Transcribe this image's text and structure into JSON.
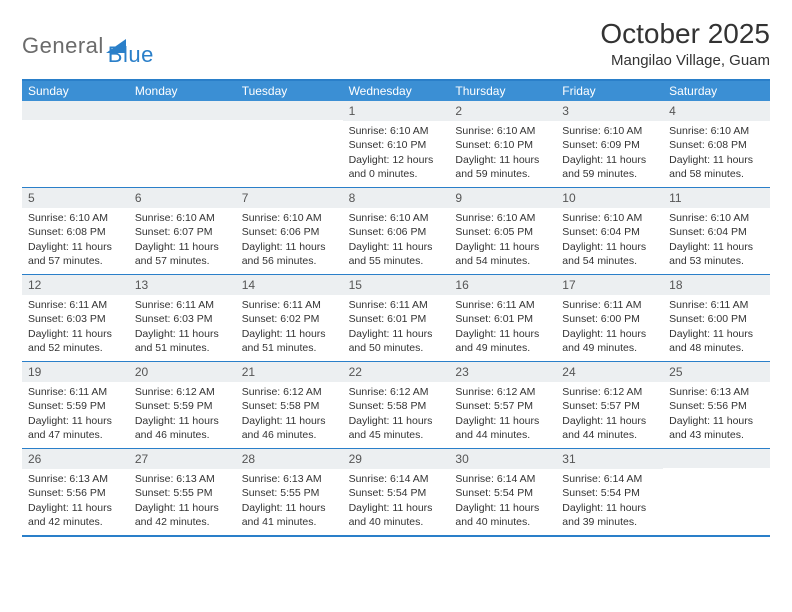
{
  "logo": {
    "general": "General",
    "blue": "Blue"
  },
  "header": {
    "title": "October 2025",
    "location": "Mangilao Village, Guam"
  },
  "colors": {
    "brand": "#2a7fc9",
    "header_bg": "#3b8fd4",
    "daynum_bg": "#eceff1"
  },
  "dayNames": [
    "Sunday",
    "Monday",
    "Tuesday",
    "Wednesday",
    "Thursday",
    "Friday",
    "Saturday"
  ],
  "weeks": [
    [
      null,
      null,
      null,
      {
        "n": "1",
        "sr": "Sunrise: 6:10 AM",
        "ss": "Sunset: 6:10 PM",
        "d1": "Daylight: 12 hours",
        "d2": "and 0 minutes."
      },
      {
        "n": "2",
        "sr": "Sunrise: 6:10 AM",
        "ss": "Sunset: 6:10 PM",
        "d1": "Daylight: 11 hours",
        "d2": "and 59 minutes."
      },
      {
        "n": "3",
        "sr": "Sunrise: 6:10 AM",
        "ss": "Sunset: 6:09 PM",
        "d1": "Daylight: 11 hours",
        "d2": "and 59 minutes."
      },
      {
        "n": "4",
        "sr": "Sunrise: 6:10 AM",
        "ss": "Sunset: 6:08 PM",
        "d1": "Daylight: 11 hours",
        "d2": "and 58 minutes."
      }
    ],
    [
      {
        "n": "5",
        "sr": "Sunrise: 6:10 AM",
        "ss": "Sunset: 6:08 PM",
        "d1": "Daylight: 11 hours",
        "d2": "and 57 minutes."
      },
      {
        "n": "6",
        "sr": "Sunrise: 6:10 AM",
        "ss": "Sunset: 6:07 PM",
        "d1": "Daylight: 11 hours",
        "d2": "and 57 minutes."
      },
      {
        "n": "7",
        "sr": "Sunrise: 6:10 AM",
        "ss": "Sunset: 6:06 PM",
        "d1": "Daylight: 11 hours",
        "d2": "and 56 minutes."
      },
      {
        "n": "8",
        "sr": "Sunrise: 6:10 AM",
        "ss": "Sunset: 6:06 PM",
        "d1": "Daylight: 11 hours",
        "d2": "and 55 minutes."
      },
      {
        "n": "9",
        "sr": "Sunrise: 6:10 AM",
        "ss": "Sunset: 6:05 PM",
        "d1": "Daylight: 11 hours",
        "d2": "and 54 minutes."
      },
      {
        "n": "10",
        "sr": "Sunrise: 6:10 AM",
        "ss": "Sunset: 6:04 PM",
        "d1": "Daylight: 11 hours",
        "d2": "and 54 minutes."
      },
      {
        "n": "11",
        "sr": "Sunrise: 6:10 AM",
        "ss": "Sunset: 6:04 PM",
        "d1": "Daylight: 11 hours",
        "d2": "and 53 minutes."
      }
    ],
    [
      {
        "n": "12",
        "sr": "Sunrise: 6:11 AM",
        "ss": "Sunset: 6:03 PM",
        "d1": "Daylight: 11 hours",
        "d2": "and 52 minutes."
      },
      {
        "n": "13",
        "sr": "Sunrise: 6:11 AM",
        "ss": "Sunset: 6:03 PM",
        "d1": "Daylight: 11 hours",
        "d2": "and 51 minutes."
      },
      {
        "n": "14",
        "sr": "Sunrise: 6:11 AM",
        "ss": "Sunset: 6:02 PM",
        "d1": "Daylight: 11 hours",
        "d2": "and 51 minutes."
      },
      {
        "n": "15",
        "sr": "Sunrise: 6:11 AM",
        "ss": "Sunset: 6:01 PM",
        "d1": "Daylight: 11 hours",
        "d2": "and 50 minutes."
      },
      {
        "n": "16",
        "sr": "Sunrise: 6:11 AM",
        "ss": "Sunset: 6:01 PM",
        "d1": "Daylight: 11 hours",
        "d2": "and 49 minutes."
      },
      {
        "n": "17",
        "sr": "Sunrise: 6:11 AM",
        "ss": "Sunset: 6:00 PM",
        "d1": "Daylight: 11 hours",
        "d2": "and 49 minutes."
      },
      {
        "n": "18",
        "sr": "Sunrise: 6:11 AM",
        "ss": "Sunset: 6:00 PM",
        "d1": "Daylight: 11 hours",
        "d2": "and 48 minutes."
      }
    ],
    [
      {
        "n": "19",
        "sr": "Sunrise: 6:11 AM",
        "ss": "Sunset: 5:59 PM",
        "d1": "Daylight: 11 hours",
        "d2": "and 47 minutes."
      },
      {
        "n": "20",
        "sr": "Sunrise: 6:12 AM",
        "ss": "Sunset: 5:59 PM",
        "d1": "Daylight: 11 hours",
        "d2": "and 46 minutes."
      },
      {
        "n": "21",
        "sr": "Sunrise: 6:12 AM",
        "ss": "Sunset: 5:58 PM",
        "d1": "Daylight: 11 hours",
        "d2": "and 46 minutes."
      },
      {
        "n": "22",
        "sr": "Sunrise: 6:12 AM",
        "ss": "Sunset: 5:58 PM",
        "d1": "Daylight: 11 hours",
        "d2": "and 45 minutes."
      },
      {
        "n": "23",
        "sr": "Sunrise: 6:12 AM",
        "ss": "Sunset: 5:57 PM",
        "d1": "Daylight: 11 hours",
        "d2": "and 44 minutes."
      },
      {
        "n": "24",
        "sr": "Sunrise: 6:12 AM",
        "ss": "Sunset: 5:57 PM",
        "d1": "Daylight: 11 hours",
        "d2": "and 44 minutes."
      },
      {
        "n": "25",
        "sr": "Sunrise: 6:13 AM",
        "ss": "Sunset: 5:56 PM",
        "d1": "Daylight: 11 hours",
        "d2": "and 43 minutes."
      }
    ],
    [
      {
        "n": "26",
        "sr": "Sunrise: 6:13 AM",
        "ss": "Sunset: 5:56 PM",
        "d1": "Daylight: 11 hours",
        "d2": "and 42 minutes."
      },
      {
        "n": "27",
        "sr": "Sunrise: 6:13 AM",
        "ss": "Sunset: 5:55 PM",
        "d1": "Daylight: 11 hours",
        "d2": "and 42 minutes."
      },
      {
        "n": "28",
        "sr": "Sunrise: 6:13 AM",
        "ss": "Sunset: 5:55 PM",
        "d1": "Daylight: 11 hours",
        "d2": "and 41 minutes."
      },
      {
        "n": "29",
        "sr": "Sunrise: 6:14 AM",
        "ss": "Sunset: 5:54 PM",
        "d1": "Daylight: 11 hours",
        "d2": "and 40 minutes."
      },
      {
        "n": "30",
        "sr": "Sunrise: 6:14 AM",
        "ss": "Sunset: 5:54 PM",
        "d1": "Daylight: 11 hours",
        "d2": "and 40 minutes."
      },
      {
        "n": "31",
        "sr": "Sunrise: 6:14 AM",
        "ss": "Sunset: 5:54 PM",
        "d1": "Daylight: 11 hours",
        "d2": "and 39 minutes."
      },
      null
    ]
  ]
}
